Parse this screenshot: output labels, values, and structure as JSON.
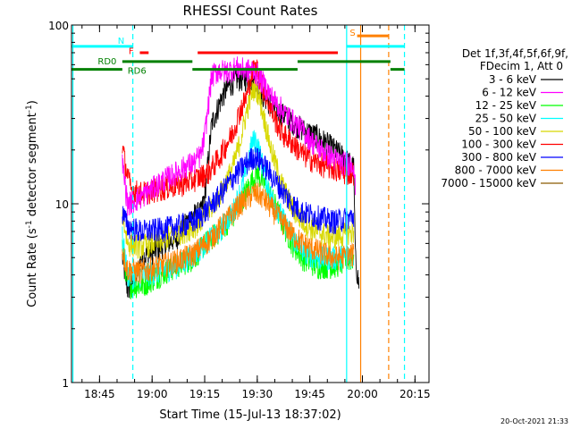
{
  "chart_data": {
    "type": "line",
    "title": "RHESSI Count Rates",
    "xlabel": "Start Time (15-Jul-13 18:37:02)",
    "ylabel_main": "Count Rate (s",
    "ylabel_sup1": "-1",
    "ylabel_mid": " detector segment",
    "ylabel_sup2": "-1",
    "ylabel_end": ")",
    "x_unit": "minutes after 18:37:02",
    "x_range": [
      0,
      102
    ],
    "y_scale": "log",
    "y_range": [
      1,
      100
    ],
    "x_ticks": [
      {
        "t": 8,
        "label": "18:45"
      },
      {
        "t": 23,
        "label": "19:00"
      },
      {
        "t": 38,
        "label": "19:15"
      },
      {
        "t": 53,
        "label": "19:30"
      },
      {
        "t": 68,
        "label": "19:45"
      },
      {
        "t": 83,
        "label": "20:00"
      },
      {
        "t": 98,
        "label": "20:15"
      }
    ],
    "y_ticks": [
      {
        "v": 1,
        "label": "1"
      },
      {
        "v": 10,
        "label": "10"
      },
      {
        "v": 100,
        "label": "100"
      }
    ],
    "legend": {
      "position": "right",
      "header": [
        "Det 1f,3f,4f,5f,6f,9f,",
        "FDecim 1, Att 0"
      ],
      "entries": [
        "3 - 6 keV",
        "6 - 12 keV",
        "12 - 25 keV",
        "25 - 50 keV",
        "50 - 100 keV",
        "100 - 300 keV",
        "300 - 800 keV",
        "800 - 7000 keV",
        "7000 - 15000 keV"
      ]
    },
    "series": [
      {
        "name": "3 - 6 keV",
        "color": "#000000",
        "points": [
          [
            14.5,
            5
          ],
          [
            16,
            3.3
          ],
          [
            18,
            3.7
          ],
          [
            20,
            5
          ],
          [
            24,
            5.5
          ],
          [
            30,
            6.5
          ],
          [
            34,
            8.5
          ],
          [
            37,
            9
          ],
          [
            38,
            11
          ],
          [
            40,
            28
          ],
          [
            43,
            40
          ],
          [
            45,
            46
          ],
          [
            47,
            50
          ],
          [
            50,
            50
          ],
          [
            52,
            49
          ],
          [
            54,
            42
          ],
          [
            58,
            34
          ],
          [
            62,
            30
          ],
          [
            66,
            26
          ],
          [
            70,
            24
          ],
          [
            74,
            21
          ],
          [
            78,
            18
          ],
          [
            80.5,
            16
          ],
          [
            81,
            5
          ],
          [
            82,
            3.5
          ]
        ]
      },
      {
        "name": "6 - 12 keV",
        "color": "#ff00ff",
        "points": [
          [
            14.5,
            17
          ],
          [
            16,
            10
          ],
          [
            20,
            11
          ],
          [
            26,
            13.5
          ],
          [
            30,
            15
          ],
          [
            33,
            16.5
          ],
          [
            35,
            17
          ],
          [
            37,
            19
          ],
          [
            38,
            24
          ],
          [
            40,
            52
          ],
          [
            42,
            56
          ],
          [
            44,
            55
          ],
          [
            47,
            58
          ],
          [
            50,
            56
          ],
          [
            52,
            56
          ],
          [
            54,
            50
          ],
          [
            57,
            40
          ],
          [
            61,
            32
          ],
          [
            65,
            27
          ],
          [
            69,
            22
          ],
          [
            73,
            19
          ],
          [
            77,
            17
          ],
          [
            80.5,
            17
          ],
          [
            81,
            12
          ]
        ]
      },
      {
        "name": "12 - 25 keV",
        "color": "#00ff00",
        "points": [
          [
            14.5,
            6
          ],
          [
            16,
            3.5
          ],
          [
            20,
            3.5
          ],
          [
            25,
            4
          ],
          [
            30,
            4.5
          ],
          [
            35,
            5
          ],
          [
            38,
            6
          ],
          [
            42,
            7
          ],
          [
            46,
            8.5
          ],
          [
            48,
            10
          ],
          [
            50,
            12
          ],
          [
            52,
            14
          ],
          [
            53,
            15
          ],
          [
            54,
            14
          ],
          [
            56,
            12
          ],
          [
            58,
            10
          ],
          [
            60,
            8
          ],
          [
            63,
            6
          ],
          [
            66,
            5
          ],
          [
            70,
            4.5
          ],
          [
            75,
            4.5
          ],
          [
            80.5,
            5
          ]
        ]
      },
      {
        "name": "25 - 50 keV",
        "color": "#00ffff",
        "points": [
          [
            14.5,
            6.5
          ],
          [
            16,
            4
          ],
          [
            20,
            4
          ],
          [
            25,
            4.2
          ],
          [
            30,
            4.5
          ],
          [
            35,
            5.2
          ],
          [
            38,
            6
          ],
          [
            42,
            7
          ],
          [
            46,
            9
          ],
          [
            49,
            13
          ],
          [
            50.5,
            18
          ],
          [
            51.5,
            22
          ],
          [
            52.5,
            23
          ],
          [
            53.5,
            20
          ],
          [
            55,
            15
          ],
          [
            57,
            11
          ],
          [
            60,
            8.5
          ],
          [
            63,
            6.5
          ],
          [
            66,
            5.5
          ],
          [
            70,
            5
          ],
          [
            75,
            5
          ],
          [
            80.5,
            5.2
          ]
        ]
      },
      {
        "name": "50 - 100 keV",
        "color": "#d8d800",
        "points": [
          [
            14.5,
            9
          ],
          [
            16,
            6
          ],
          [
            20,
            5.8
          ],
          [
            25,
            6.2
          ],
          [
            30,
            6.8
          ],
          [
            35,
            7.5
          ],
          [
            38,
            8.5
          ],
          [
            42,
            11
          ],
          [
            46,
            16
          ],
          [
            48,
            22
          ],
          [
            50,
            33
          ],
          [
            51.5,
            42
          ],
          [
            52.5,
            46
          ],
          [
            53.5,
            40
          ],
          [
            55,
            30
          ],
          [
            57,
            20
          ],
          [
            60,
            13
          ],
          [
            63,
            9.5
          ],
          [
            66,
            8
          ],
          [
            70,
            7
          ],
          [
            75,
            6.5
          ],
          [
            80.5,
            7
          ]
        ]
      },
      {
        "name": "100 - 300 keV",
        "color": "#ff0000",
        "points": [
          [
            14.5,
            21
          ],
          [
            15.5,
            16
          ],
          [
            17,
            12
          ],
          [
            20,
            11.5
          ],
          [
            24,
            12
          ],
          [
            28,
            12.5
          ],
          [
            32,
            13
          ],
          [
            36,
            14
          ],
          [
            39,
            15
          ],
          [
            42,
            18
          ],
          [
            46,
            25
          ],
          [
            48,
            33
          ],
          [
            50,
            40
          ],
          [
            51,
            50
          ],
          [
            52,
            57
          ],
          [
            53,
            57
          ],
          [
            54,
            48
          ],
          [
            56,
            38
          ],
          [
            58,
            30
          ],
          [
            60,
            25
          ],
          [
            63,
            22
          ],
          [
            66,
            19
          ],
          [
            70,
            17
          ],
          [
            74,
            16
          ],
          [
            78,
            15
          ],
          [
            80.5,
            15
          ]
        ]
      },
      {
        "name": "300 - 800 keV",
        "color": "#0000ff",
        "points": [
          [
            14.5,
            9
          ],
          [
            16,
            7.5
          ],
          [
            20,
            7
          ],
          [
            25,
            7.2
          ],
          [
            30,
            7.5
          ],
          [
            35,
            8
          ],
          [
            38,
            9
          ],
          [
            42,
            11
          ],
          [
            46,
            14
          ],
          [
            50,
            17
          ],
          [
            52,
            18.5
          ],
          [
            54,
            17.5
          ],
          [
            57,
            14.5
          ],
          [
            60,
            12
          ],
          [
            63,
            10
          ],
          [
            66,
            9
          ],
          [
            70,
            8.5
          ],
          [
            75,
            8
          ],
          [
            80.5,
            8.5
          ]
        ]
      },
      {
        "name": "800 - 7000 keV",
        "color": "#ff8000",
        "points": [
          [
            14.5,
            5.5
          ],
          [
            16,
            4.3
          ],
          [
            20,
            4.2
          ],
          [
            25,
            4.5
          ],
          [
            30,
            4.8
          ],
          [
            35,
            5.3
          ],
          [
            40,
            6.5
          ],
          [
            44,
            8
          ],
          [
            48,
            10
          ],
          [
            52,
            11.5
          ],
          [
            54,
            11.2
          ],
          [
            57,
            9.5
          ],
          [
            60,
            8
          ],
          [
            63,
            6.8
          ],
          [
            66,
            6
          ],
          [
            70,
            5.5
          ],
          [
            75,
            5
          ],
          [
            80.5,
            5.2
          ]
        ]
      },
      {
        "name": "7000 - 15000 keV",
        "color": "#8a5a00",
        "points": []
      }
    ],
    "overlays": {
      "vertical_lines": [
        {
          "t": 0.4,
          "style": "solid",
          "color": "#00ffff"
        },
        {
          "t": 17.5,
          "style": "dashed",
          "color": "#00ffff"
        },
        {
          "t": 78.5,
          "style": "solid",
          "color": "#00ffff"
        },
        {
          "t": 82.5,
          "style": "solid",
          "color": "#ff8000"
        },
        {
          "t": 90.5,
          "style": "dashed",
          "color": "#ff8000"
        },
        {
          "t": 95,
          "style": "dashed",
          "color": "#00ffff"
        }
      ],
      "bars": [
        {
          "start": 0,
          "end": 17.5,
          "y": 76,
          "color": "#00ffff",
          "label": "N",
          "label_t": 13.2,
          "label_y": 82
        },
        {
          "start": 78.5,
          "end": 95,
          "y": 76,
          "color": "#00ffff",
          "label": "",
          "label_t": 0,
          "label_y": 0
        },
        {
          "start": 81.5,
          "end": 90.5,
          "y": 87,
          "color": "#ff8000",
          "label": "S",
          "label_t": 79.4,
          "label_y": 91
        },
        {
          "start": 19.5,
          "end": 22,
          "y": 70,
          "color": "#ff0000",
          "label": "F",
          "label_t": 16.3,
          "label_y": 72
        },
        {
          "start": 36,
          "end": 76,
          "y": 70,
          "color": "#ff0000",
          "label": "",
          "label_t": 0,
          "label_y": 0
        },
        {
          "start": 14.5,
          "end": 34.5,
          "y": 62.5,
          "color": "#008000",
          "label": "RD0",
          "label_t": 7.5,
          "label_y": 63
        },
        {
          "start": 64.5,
          "end": 91,
          "y": 62.5,
          "color": "#008000",
          "label": "",
          "label_t": 0,
          "label_y": 0
        },
        {
          "start": 0,
          "end": 14.5,
          "y": 56.5,
          "color": "#008000",
          "label": "RD6",
          "label_t": 16,
          "label_y": 56
        },
        {
          "start": 34.5,
          "end": 64.5,
          "y": 56.5,
          "color": "#008000",
          "label": "",
          "label_t": 0,
          "label_y": 0
        },
        {
          "start": 91,
          "end": 95,
          "y": 56.5,
          "color": "#008000",
          "label": "",
          "label_t": 0,
          "label_y": 0
        }
      ]
    },
    "timestamp": "20-Oct-2021 21:33"
  }
}
